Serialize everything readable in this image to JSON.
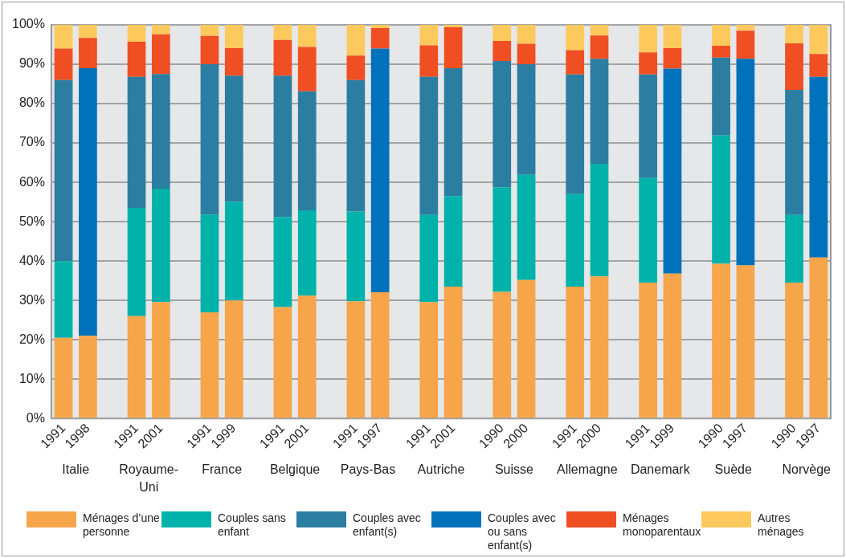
{
  "chart_data": {
    "type": "bar",
    "stacked": true,
    "legend": "bottom",
    "grid": "y",
    "categories": [
      "1991",
      "1998",
      "1991",
      "2001",
      "1991",
      "1999",
      "1991",
      "2001",
      "1991",
      "1997",
      "1991",
      "2001",
      "1990",
      "2000",
      "1991",
      "2000",
      "1991",
      "1999",
      "1990",
      "1997",
      "1990",
      "1997"
    ],
    "annotations": [
      "Italie",
      "Royaume-Uni",
      "France",
      "Belgique",
      "Pays-Bas",
      "Autriche",
      "Suisse",
      "Allemagne",
      "Danemark",
      "Suède",
      "Norvège"
    ],
    "ylim": [
      0,
      100
    ],
    "yticks": [
      {
        "value": 0,
        "label": "0%"
      },
      {
        "value": 10,
        "label": "10%"
      },
      {
        "value": 20,
        "label": "20%"
      },
      {
        "value": 30,
        "label": "30%"
      },
      {
        "value": 40,
        "label": "40%"
      },
      {
        "value": 50,
        "label": "50%"
      },
      {
        "value": 60,
        "label": "60%"
      },
      {
        "value": 70,
        "label": "70%"
      },
      {
        "value": 80,
        "label": "80%"
      },
      {
        "value": 90,
        "label": "90%"
      },
      {
        "value": 100,
        "label": "100%"
      }
    ],
    "series": [
      {
        "name": "Ménages d’une personne",
        "color": "#f7a54a",
        "values": [
          20.5,
          21,
          26,
          29.6,
          27,
          30,
          28.3,
          31.2,
          29.8,
          32.1,
          29.6,
          33.5,
          32.2,
          35.2,
          33.5,
          36.1,
          34.5,
          36.8,
          39.3,
          38.9,
          34.5,
          40.9
        ]
      },
      {
        "name": "Couples sans enfant",
        "color": "#00b2aa",
        "values": [
          19.5,
          null,
          27.5,
          28.8,
          24.8,
          25,
          22.9,
          21.7,
          22.8,
          null,
          22.1,
          23,
          26.5,
          26.7,
          23.5,
          28.6,
          26.6,
          null,
          32.6,
          null,
          17.2,
          null
        ]
      },
      {
        "name": "Couples avec enfant(s)",
        "color": "#2b7ea1",
        "values": [
          46,
          null,
          33.3,
          29.1,
          38.2,
          32.1,
          35.9,
          30.2,
          33.4,
          null,
          35.1,
          32.5,
          32.1,
          28.1,
          30.4,
          26.7,
          26.3,
          null,
          19.8,
          null,
          31.8,
          null
        ]
      },
      {
        "name": "Couples avec ou sans enfant(s)",
        "color": "#0071bb",
        "values": [
          null,
          68,
          null,
          null,
          null,
          null,
          null,
          null,
          null,
          61.9,
          null,
          null,
          null,
          null,
          null,
          null,
          null,
          52.1,
          null,
          52.5,
          null,
          45.9
        ]
      },
      {
        "name": "Ménages monoparentaux",
        "color": "#f04e23",
        "values": [
          8,
          7.7,
          8.9,
          10.1,
          7.2,
          7,
          9.1,
          11.3,
          6.2,
          5.2,
          8,
          10.4,
          5.1,
          5.2,
          6.2,
          5.9,
          5.6,
          5.2,
          3,
          7.1,
          11.8,
          5.8
        ]
      },
      {
        "name": "Autres ménages",
        "color": "#fdc95d",
        "values": [
          6,
          3.3,
          4.3,
          2.4,
          2.8,
          5.9,
          3.8,
          5.6,
          7.8,
          0.8,
          5.2,
          0.6,
          4.1,
          4.8,
          6.4,
          2.7,
          7,
          5.9,
          5.3,
          1.5,
          4.7,
          7.4
        ]
      }
    ]
  }
}
